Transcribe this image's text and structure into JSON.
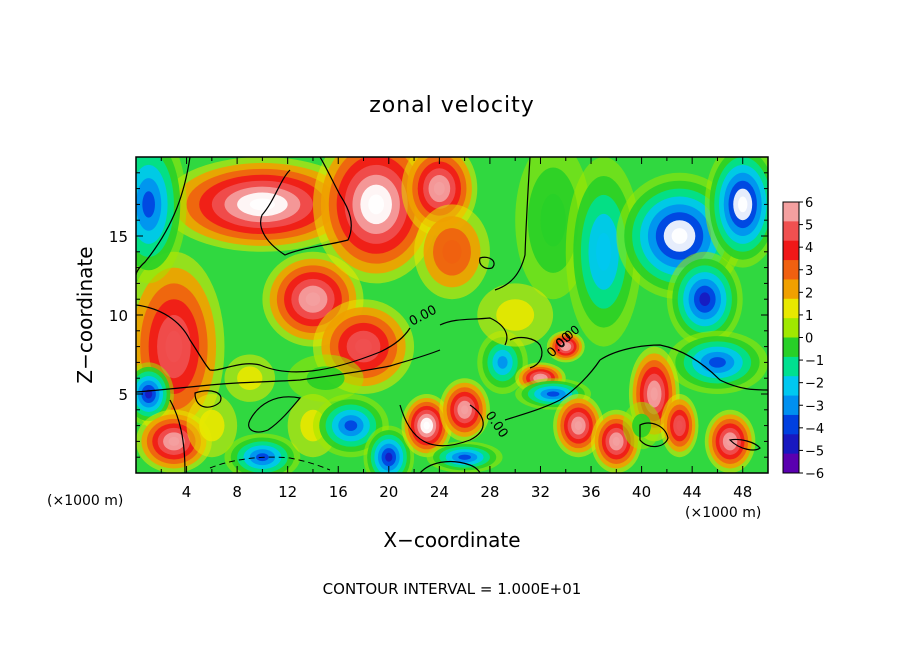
{
  "chart_data": {
    "type": "heatmap",
    "title": "zonal velocity",
    "xlabel": "X−coordinate",
    "ylabel": "Z−coordinate",
    "x_unit_label": "(×1000 m)",
    "x_unit_label_right": "(×1000 m)",
    "x_ticks": [
      4,
      8,
      12,
      16,
      20,
      24,
      28,
      32,
      36,
      40,
      44,
      48
    ],
    "y_ticks": [
      5,
      10,
      15
    ],
    "xlim": [
      0,
      50
    ],
    "ylim": [
      0,
      20
    ],
    "footer": "CONTOUR INTERVAL = 1.000E+01",
    "contour_labels": [
      "0.00",
      "0.00",
      "0.00",
      "0.00"
    ],
    "colorbar": {
      "ticks": [
        "6",
        "5",
        "4",
        "3",
        "2",
        "1",
        "0",
        "−1",
        "−2",
        "−3",
        "−4",
        "−5",
        "−6"
      ],
      "colors": [
        "#f4a0a0",
        "#f05050",
        "#f01818",
        "#f06010",
        "#f0a000",
        "#e8e800",
        "#a0e800",
        "#28d028",
        "#00e090",
        "#00c8f0",
        "#0090f0",
        "#0040e0",
        "#1818c0",
        "#5a00b0"
      ]
    },
    "field_blobs": [
      {
        "x": 3,
        "z": 8,
        "rx": 4,
        "rz": 6,
        "v": 4.5
      },
      {
        "x": 10,
        "z": 17,
        "rx": 8,
        "rz": 3,
        "v": 6.5
      },
      {
        "x": 14,
        "z": 11,
        "rx": 4,
        "rz": 3,
        "v": 5.5
      },
      {
        "x": 18,
        "z": 8,
        "rx": 4,
        "rz": 3,
        "v": 4.5
      },
      {
        "x": 19,
        "z": 17,
        "rx": 5,
        "rz": 5,
        "v": 7
      },
      {
        "x": 24,
        "z": 18,
        "rx": 3,
        "rz": 3,
        "v": 6
      },
      {
        "x": 25,
        "z": 14,
        "rx": 3,
        "rz": 3,
        "v": 3
      },
      {
        "x": 33,
        "z": 16,
        "rx": 3,
        "rz": 5,
        "v": -1.5
      },
      {
        "x": 37,
        "z": 14,
        "rx": 3,
        "rz": 6,
        "v": -3.5
      },
      {
        "x": 43,
        "z": 15,
        "rx": 5,
        "rz": 4,
        "v": -6.5
      },
      {
        "x": 45,
        "z": 11,
        "rx": 3,
        "rz": 3,
        "v": -6
      },
      {
        "x": 48,
        "z": 17,
        "rx": 3,
        "rz": 4,
        "v": -6.5
      },
      {
        "x": 46,
        "z": 7,
        "rx": 4,
        "rz": 2,
        "v": -5
      },
      {
        "x": 1,
        "z": 17,
        "rx": 3,
        "rz": 5,
        "v": -5
      },
      {
        "x": 1,
        "z": 5,
        "rx": 2,
        "rz": 2,
        "v": -6
      },
      {
        "x": 3,
        "z": 2,
        "rx": 3,
        "rz": 2,
        "v": 6
      },
      {
        "x": 6,
        "z": 3,
        "rx": 2,
        "rz": 2,
        "v": 1
      },
      {
        "x": 10,
        "z": 1,
        "rx": 3,
        "rz": 1.5,
        "v": -5
      },
      {
        "x": 14,
        "z": 3,
        "rx": 2,
        "rz": 2,
        "v": 1
      },
      {
        "x": 17,
        "z": 3,
        "rx": 3,
        "rz": 2,
        "v": -5
      },
      {
        "x": 20,
        "z": 1,
        "rx": 2,
        "rz": 2,
        "v": -6
      },
      {
        "x": 23,
        "z": 3,
        "rx": 2,
        "rz": 2,
        "v": 7
      },
      {
        "x": 26,
        "z": 4,
        "rx": 2,
        "rz": 2,
        "v": 6
      },
      {
        "x": 26,
        "z": 1,
        "rx": 3,
        "rz": 1,
        "v": -5
      },
      {
        "x": 29,
        "z": 7,
        "rx": 2,
        "rz": 2,
        "v": -4
      },
      {
        "x": 32,
        "z": 6,
        "rx": 2,
        "rz": 1,
        "v": 6
      },
      {
        "x": 33,
        "z": 5,
        "rx": 3,
        "rz": 1,
        "v": -5
      },
      {
        "x": 34,
        "z": 8,
        "rx": 1.5,
        "rz": 1,
        "v": 6
      },
      {
        "x": 35,
        "z": 3,
        "rx": 2,
        "rz": 2,
        "v": 6
      },
      {
        "x": 38,
        "z": 2,
        "rx": 2,
        "rz": 2,
        "v": 6
      },
      {
        "x": 41,
        "z": 5,
        "rx": 2,
        "rz": 3,
        "v": 6
      },
      {
        "x": 43,
        "z": 3,
        "rx": 1.5,
        "rz": 2,
        "v": 5
      },
      {
        "x": 40,
        "z": 3,
        "rx": 1.5,
        "rz": 1.5,
        "v": -1
      },
      {
        "x": 47,
        "z": 2,
        "rx": 2,
        "rz": 2,
        "v": 6
      },
      {
        "x": 15,
        "z": 6,
        "rx": 3,
        "rz": 1.5,
        "v": -1
      },
      {
        "x": 9,
        "z": 6,
        "rx": 2,
        "rz": 1.5,
        "v": 0.5
      },
      {
        "x": 30,
        "z": 10,
        "rx": 3,
        "rz": 2,
        "v": 0.5
      }
    ]
  }
}
